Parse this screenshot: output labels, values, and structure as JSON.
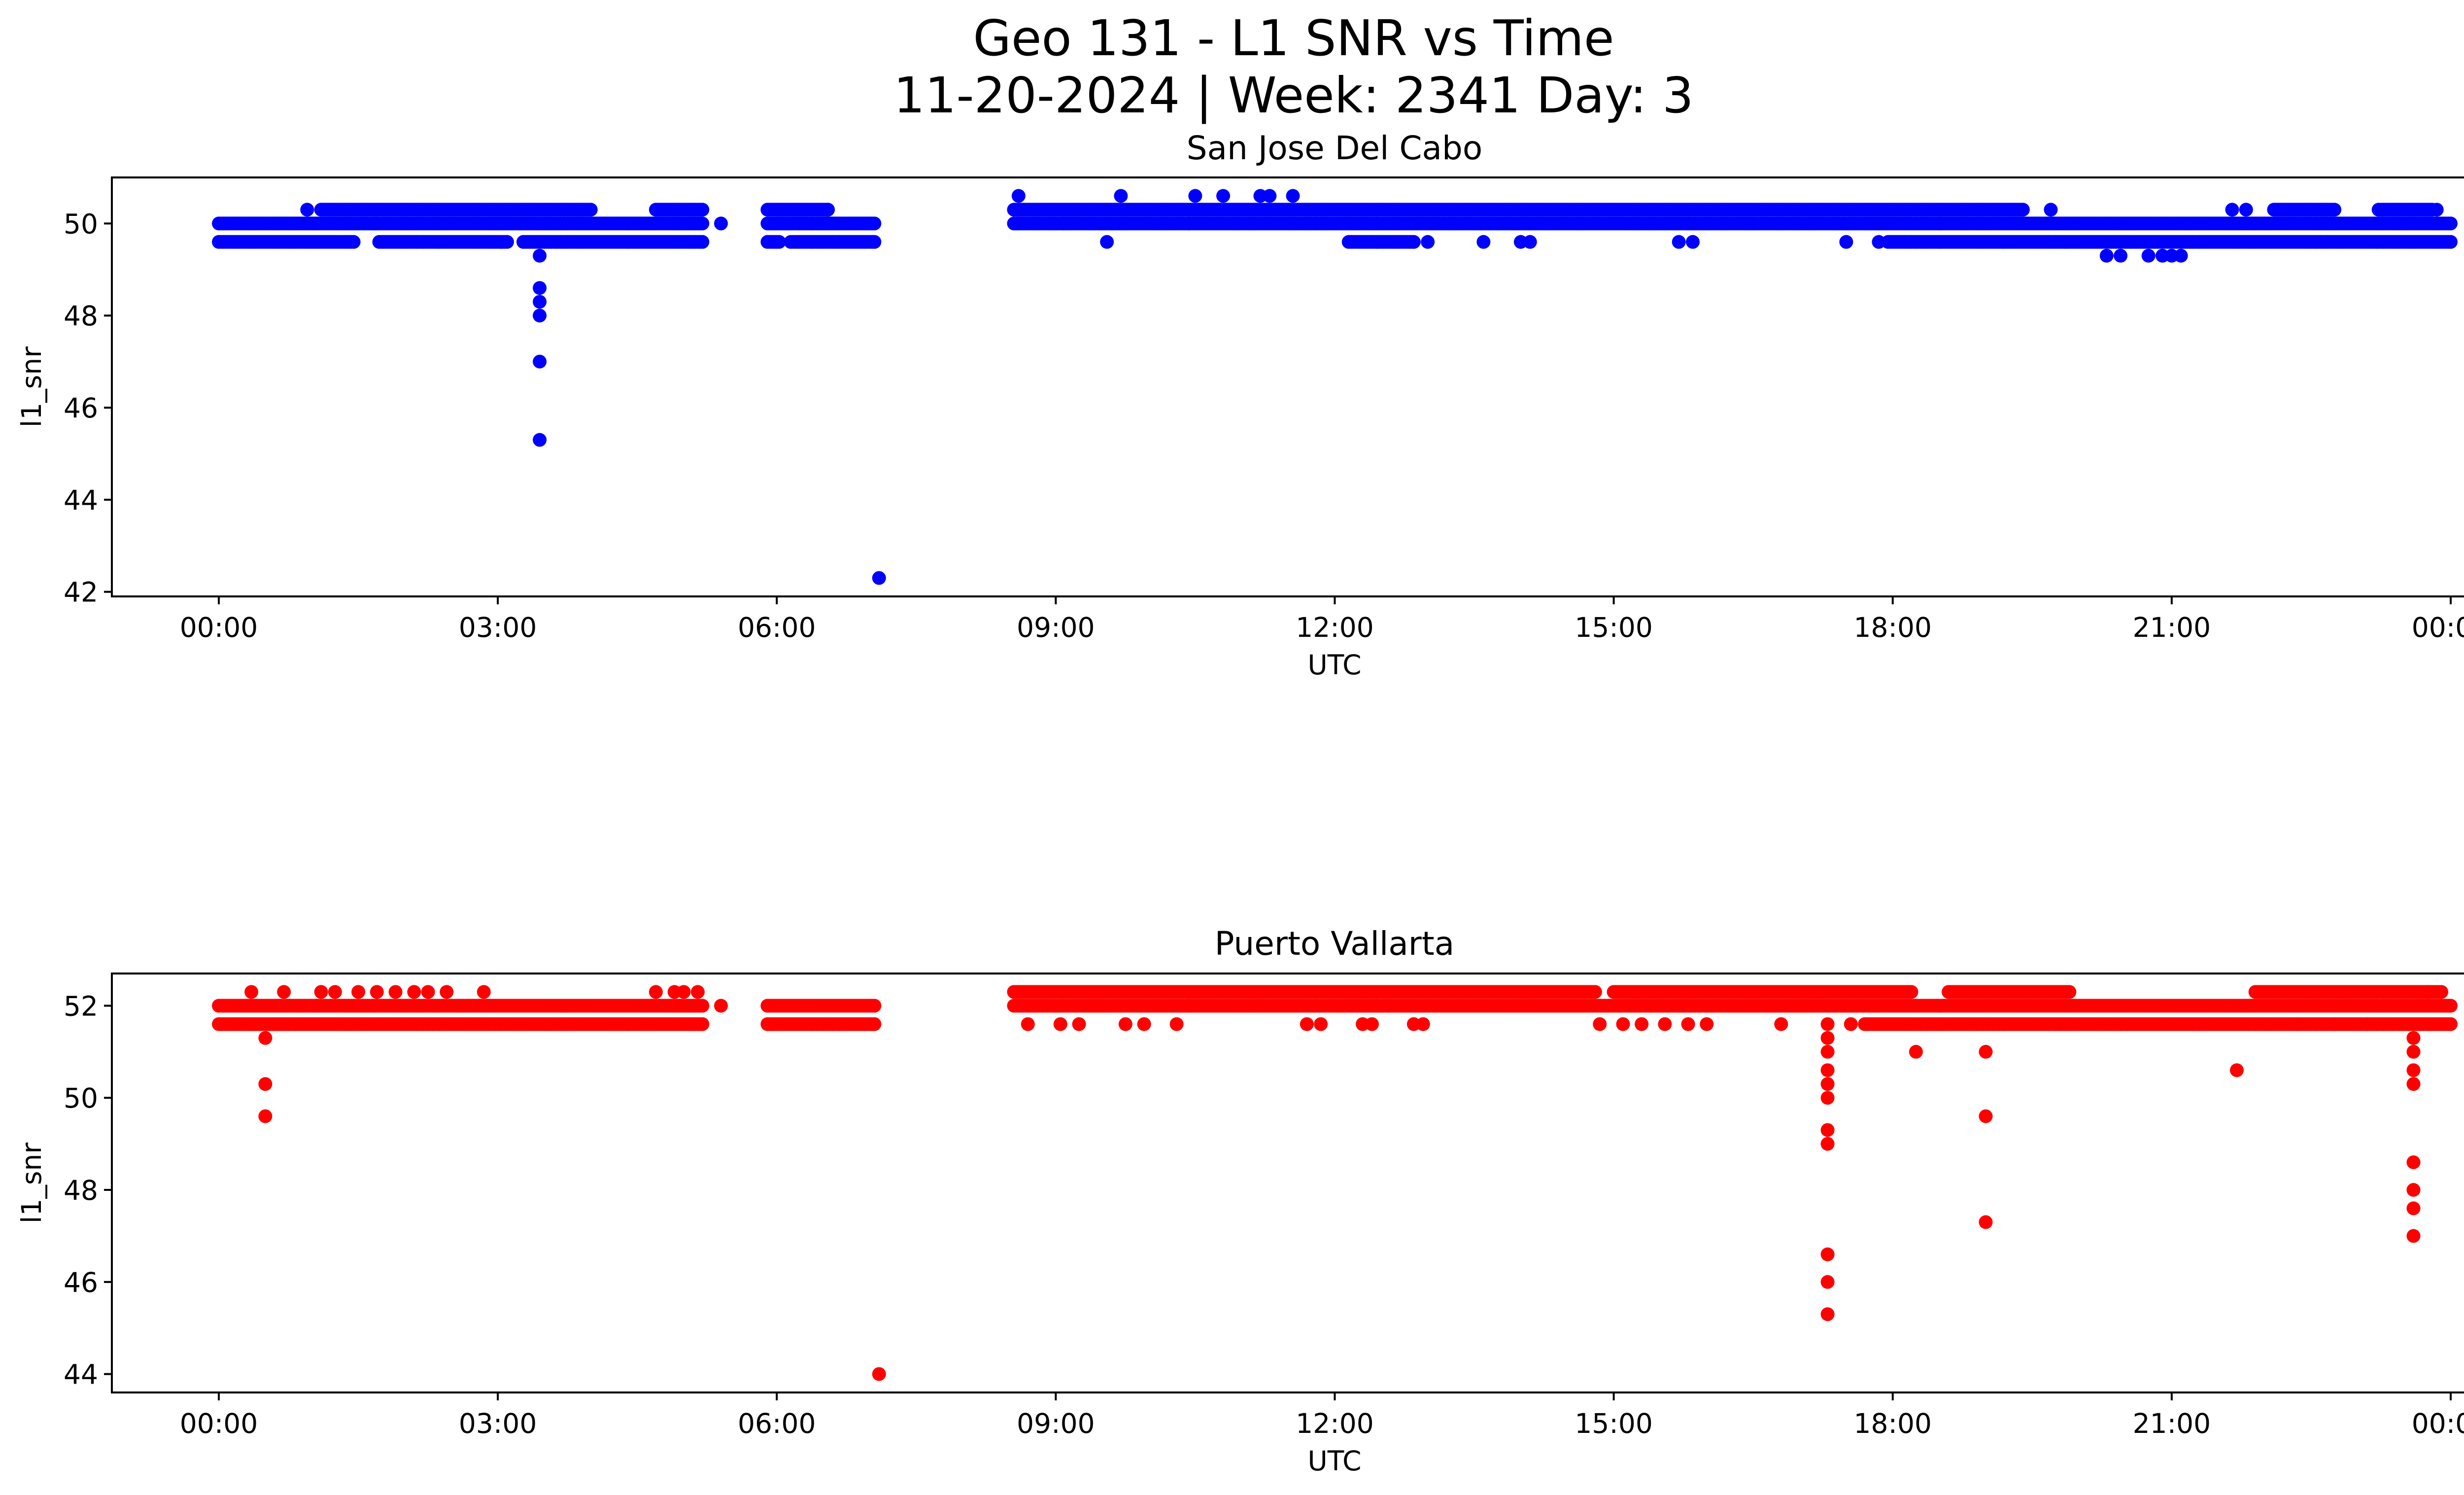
{
  "figure": {
    "title_line1": "Geo 131 - L1 SNR vs Time",
    "title_line2": "11-20-2024 | Week: 2341 Day: 3"
  },
  "chart_data": [
    {
      "type": "scatter",
      "title": "San Jose Del Cabo",
      "xlabel": "UTC",
      "ylabel": "l1_snr",
      "color": "#0000ff",
      "xlim_hours": [
        -1.15,
        25.15
      ],
      "ylim": [
        41.9,
        51.0
      ],
      "xticks_hours": [
        0,
        3,
        6,
        9,
        12,
        15,
        18,
        21,
        24
      ],
      "xtick_labels": [
        "00:00",
        "03:00",
        "06:00",
        "09:00",
        "12:00",
        "15:00",
        "18:00",
        "21:00",
        "00:00"
      ],
      "yticks": [
        42,
        44,
        46,
        48,
        50
      ],
      "ytick_labels": [
        "42",
        "44",
        "46",
        "48",
        "50"
      ],
      "bands": [
        {
          "start": 0.0,
          "end": 5.2,
          "value": 50.0
        },
        {
          "start": 0.0,
          "end": 5.2,
          "value": 49.6,
          "gaps": [
            [
              1.45,
              1.7
            ],
            [
              3.1,
              3.25
            ]
          ]
        },
        {
          "start": 1.1,
          "end": 5.2,
          "value": 50.3,
          "gaps": [
            [
              4.0,
              4.7
            ]
          ]
        },
        {
          "start": 5.9,
          "end": 7.05,
          "value": 50.0
        },
        {
          "start": 5.9,
          "end": 7.05,
          "value": 49.6,
          "gaps": [
            [
              6.05,
              6.15
            ]
          ]
        },
        {
          "start": 5.9,
          "end": 6.55,
          "value": 50.3
        },
        {
          "start": 8.55,
          "end": 24.0,
          "value": 50.0
        },
        {
          "start": 8.55,
          "end": 19.4,
          "value": 50.3
        },
        {
          "start": 22.1,
          "end": 24.0,
          "value": 50.3,
          "gaps": [
            [
              22.75,
              23.2
            ],
            [
              23.8,
              24.0
            ]
          ]
        },
        {
          "start": 12.15,
          "end": 12.85,
          "value": 49.6
        },
        {
          "start": 17.95,
          "end": 24.0,
          "value": 49.6
        }
      ],
      "points": [
        [
          0.95,
          50.3
        ],
        [
          3.45,
          49.3
        ],
        [
          3.45,
          48.6
        ],
        [
          3.45,
          48.3
        ],
        [
          3.45,
          48.0
        ],
        [
          3.45,
          47.0
        ],
        [
          3.45,
          45.3
        ],
        [
          4.7,
          50.3
        ],
        [
          5.4,
          50.0
        ],
        [
          6.55,
          50.3
        ],
        [
          7.1,
          42.3
        ],
        [
          8.6,
          50.6
        ],
        [
          9.55,
          49.6
        ],
        [
          9.7,
          50.6
        ],
        [
          10.5,
          50.6
        ],
        [
          10.8,
          50.6
        ],
        [
          11.2,
          50.6
        ],
        [
          11.3,
          50.6
        ],
        [
          11.55,
          50.6
        ],
        [
          13.0,
          49.6
        ],
        [
          13.6,
          49.6
        ],
        [
          14.0,
          49.6
        ],
        [
          14.1,
          49.6
        ],
        [
          15.7,
          49.6
        ],
        [
          15.85,
          49.6
        ],
        [
          17.5,
          49.6
        ],
        [
          17.85,
          49.6
        ],
        [
          19.7,
          50.3
        ],
        [
          20.3,
          49.3
        ],
        [
          20.45,
          49.3
        ],
        [
          20.75,
          49.3
        ],
        [
          20.9,
          49.3
        ],
        [
          21.0,
          49.3
        ],
        [
          21.1,
          49.3
        ],
        [
          21.65,
          50.3
        ],
        [
          21.8,
          50.3
        ],
        [
          23.85,
          50.3
        ]
      ]
    },
    {
      "type": "scatter",
      "title": "Puerto Vallarta",
      "xlabel": "UTC",
      "ylabel": "l1_snr",
      "color": "#ff0000",
      "xlim_hours": [
        -1.15,
        25.15
      ],
      "ylim": [
        43.6,
        52.7
      ],
      "xticks_hours": [
        0,
        3,
        6,
        9,
        12,
        15,
        18,
        21,
        24
      ],
      "xtick_labels": [
        "00:00",
        "03:00",
        "06:00",
        "09:00",
        "12:00",
        "15:00",
        "18:00",
        "21:00",
        "00:00"
      ],
      "yticks": [
        44,
        46,
        48,
        50,
        52
      ],
      "ytick_labels": [
        "44",
        "46",
        "48",
        "50",
        "52"
      ],
      "bands": [
        {
          "start": 0.0,
          "end": 5.2,
          "value": 52.0
        },
        {
          "start": 0.0,
          "end": 5.2,
          "value": 51.6
        },
        {
          "start": 5.9,
          "end": 7.05,
          "value": 52.0
        },
        {
          "start": 5.9,
          "end": 7.05,
          "value": 51.6
        },
        {
          "start": 8.55,
          "end": 24.0,
          "value": 52.0
        },
        {
          "start": 8.55,
          "end": 14.8,
          "value": 52.3
        },
        {
          "start": 15.0,
          "end": 18.2,
          "value": 52.3
        },
        {
          "start": 18.6,
          "end": 19.9,
          "value": 52.3
        },
        {
          "start": 21.9,
          "end": 23.9,
          "value": 52.3
        },
        {
          "start": 17.7,
          "end": 24.0,
          "value": 51.6
        }
      ],
      "points": [
        [
          0.35,
          52.3
        ],
        [
          0.7,
          52.3
        ],
        [
          1.1,
          52.3
        ],
        [
          1.25,
          52.3
        ],
        [
          1.5,
          52.3
        ],
        [
          1.7,
          52.3
        ],
        [
          1.9,
          52.3
        ],
        [
          2.1,
          52.3
        ],
        [
          2.25,
          52.3
        ],
        [
          2.45,
          52.3
        ],
        [
          2.85,
          52.3
        ],
        [
          4.7,
          52.3
        ],
        [
          4.9,
          52.3
        ],
        [
          5.0,
          52.3
        ],
        [
          5.15,
          52.3
        ],
        [
          0.5,
          51.3
        ],
        [
          0.5,
          50.3
        ],
        [
          0.5,
          49.6
        ],
        [
          5.4,
          52.0
        ],
        [
          7.1,
          44.0
        ],
        [
          8.7,
          51.6
        ],
        [
          9.05,
          51.6
        ],
        [
          9.25,
          51.6
        ],
        [
          9.75,
          51.6
        ],
        [
          9.95,
          51.6
        ],
        [
          10.3,
          51.6
        ],
        [
          11.7,
          51.6
        ],
        [
          11.85,
          51.6
        ],
        [
          12.3,
          51.6
        ],
        [
          12.4,
          51.6
        ],
        [
          12.85,
          51.6
        ],
        [
          12.95,
          51.6
        ],
        [
          14.85,
          51.6
        ],
        [
          15.1,
          51.6
        ],
        [
          15.3,
          51.6
        ],
        [
          15.55,
          51.6
        ],
        [
          15.8,
          51.6
        ],
        [
          16.0,
          51.6
        ],
        [
          16.8,
          51.6
        ],
        [
          17.3,
          51.6
        ],
        [
          17.3,
          51.3
        ],
        [
          17.3,
          51.0
        ],
        [
          17.3,
          50.6
        ],
        [
          17.3,
          50.3
        ],
        [
          17.3,
          50.0
        ],
        [
          17.3,
          49.3
        ],
        [
          17.3,
          49.0
        ],
        [
          17.3,
          46.6
        ],
        [
          17.3,
          46.0
        ],
        [
          17.3,
          45.3
        ],
        [
          17.55,
          51.6
        ],
        [
          18.25,
          51.0
        ],
        [
          19.0,
          51.0
        ],
        [
          19.0,
          49.6
        ],
        [
          19.0,
          47.3
        ],
        [
          21.7,
          50.6
        ],
        [
          22.35,
          51.6
        ],
        [
          22.75,
          51.6
        ],
        [
          23.1,
          51.6
        ],
        [
          23.6,
          51.3
        ],
        [
          23.6,
          51.0
        ],
        [
          23.6,
          50.6
        ],
        [
          23.6,
          50.3
        ],
        [
          23.6,
          48.6
        ],
        [
          23.6,
          48.0
        ],
        [
          23.6,
          47.6
        ],
        [
          23.6,
          47.0
        ],
        [
          23.75,
          52.3
        ]
      ]
    }
  ]
}
